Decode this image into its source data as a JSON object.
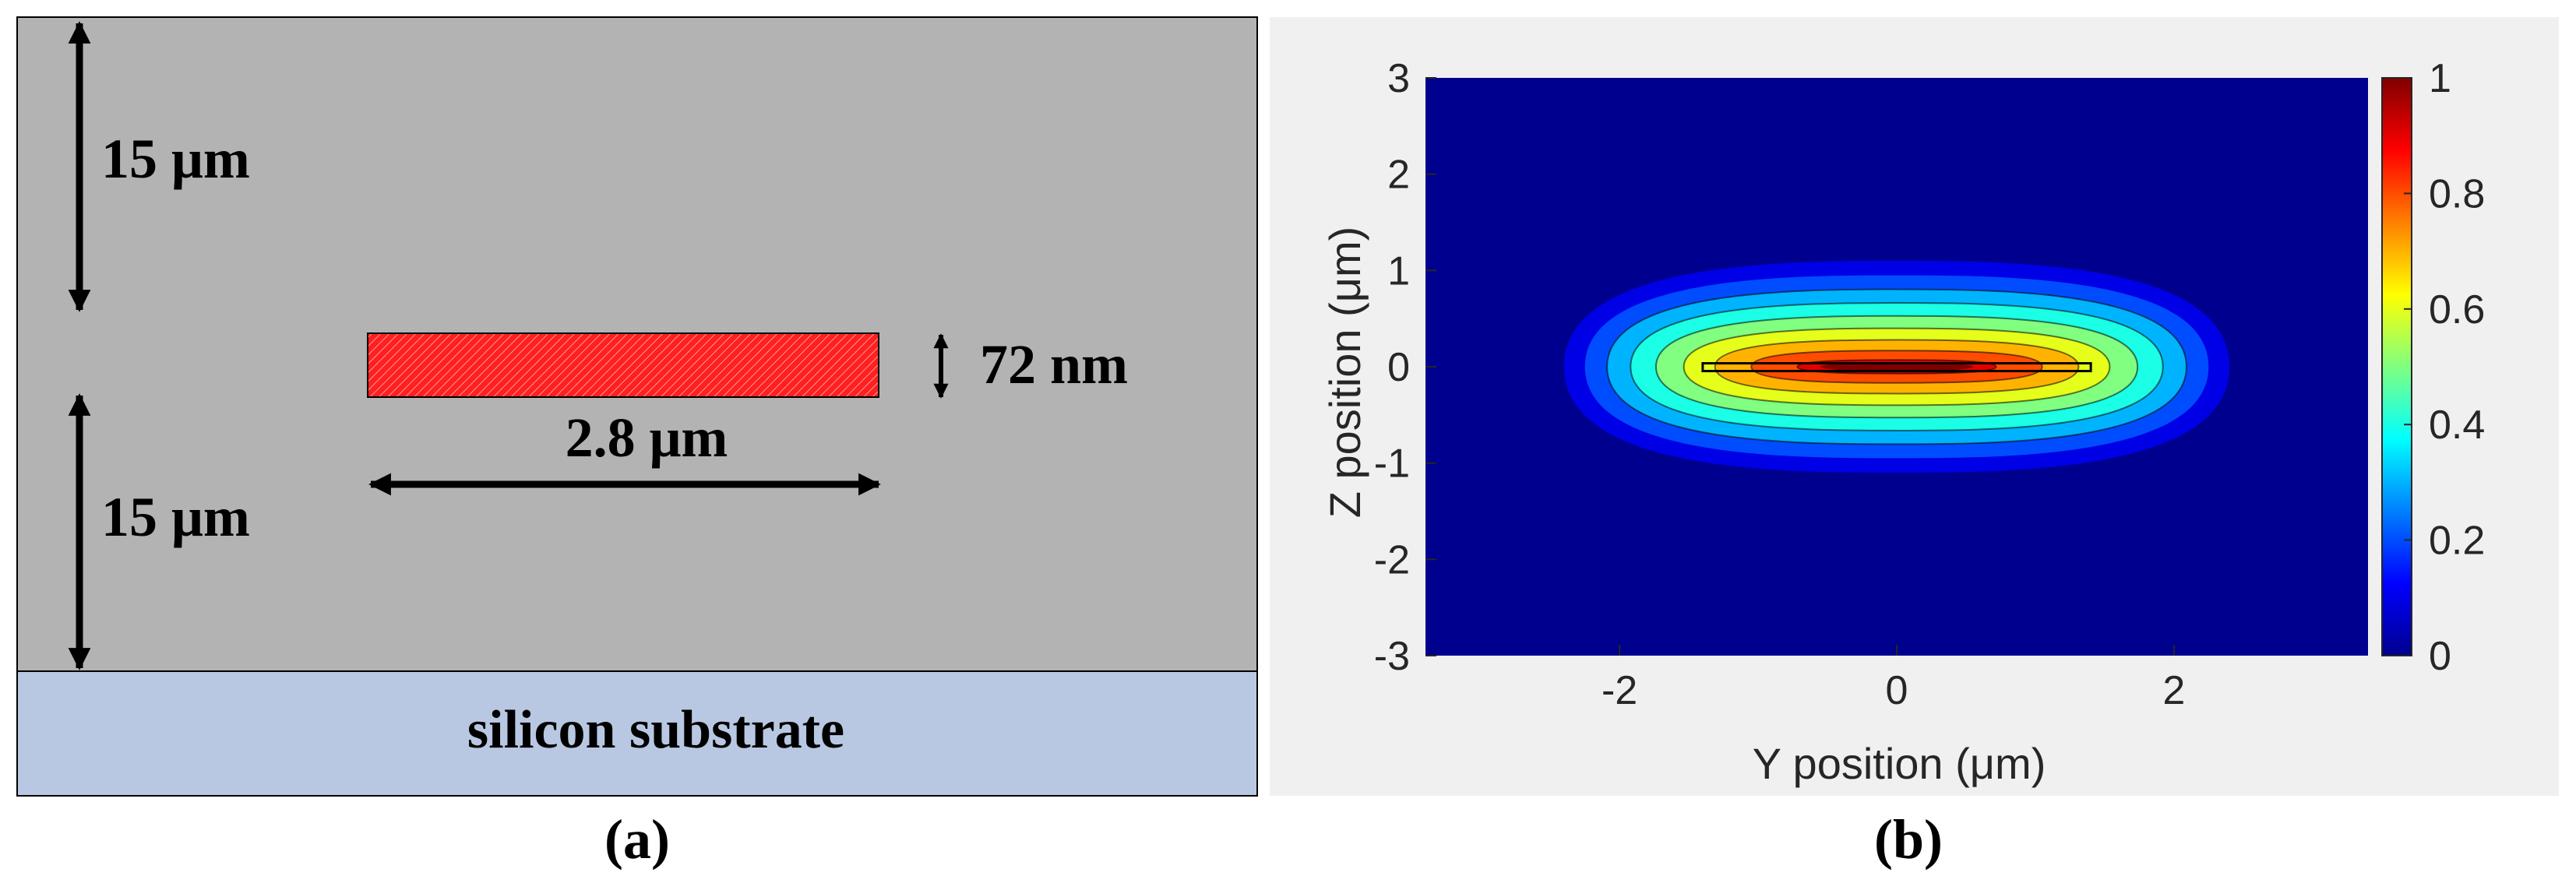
{
  "panel_a": {
    "label": "(a)",
    "cladding_top_thickness": "15 μm",
    "cladding_bottom_thickness": "15 μm",
    "core_thickness": "72 nm",
    "core_width": "2.8 μm",
    "substrate_label": "silicon substrate",
    "colors": {
      "cladding": "#b3b3b3",
      "core": "#ff2020",
      "substrate": "#b9c8e2",
      "arrow": "#000000"
    }
  },
  "panel_b": {
    "label": "(b)",
    "chart_data": {
      "type": "heatmap",
      "title": "",
      "xlabel": "Y position (μm)",
      "ylabel": "Z position (μm)",
      "xlim": [
        -3.4,
        3.4
      ],
      "ylim": [
        -3,
        3
      ],
      "x_ticks": [
        -2,
        0,
        2
      ],
      "y_ticks": [
        -3,
        -2,
        -1,
        0,
        1,
        2,
        3
      ],
      "colorbar": {
        "range": [
          0,
          1
        ],
        "ticks": [
          0,
          0.2,
          0.4,
          0.6,
          0.8,
          1
        ],
        "colormap": "jet"
      },
      "contour_levels": [
        0.1,
        0.2,
        0.3,
        0.4,
        0.5,
        0.6,
        0.7,
        0.8,
        0.9
      ],
      "field_profile": {
        "peak_value": 1,
        "center": [
          0,
          0
        ],
        "outer_contour_half_width_y": 2.4,
        "outer_contour_half_width_z": 1.1
      },
      "waveguide_outline": {
        "y_range": [
          -1.4,
          1.4
        ],
        "z_range": [
          -0.036,
          0.036
        ]
      },
      "background_color": "#00008f",
      "panel_background": "#f0f0f0"
    }
  }
}
